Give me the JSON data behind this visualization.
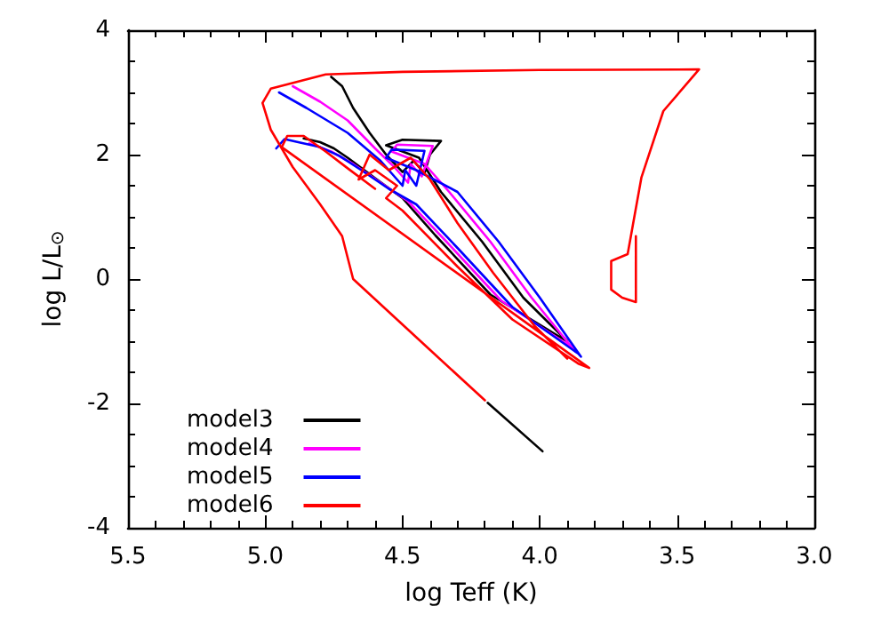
{
  "chart_data": {
    "type": "line",
    "xlabel": "log Teff (K)",
    "ylabel": "log L/L$_{⊙}$",
    "xlim": [
      5.5,
      3.0
    ],
    "xticks": [
      5.5,
      {
        "value": 5,
        "label": "5.0"
      },
      4.5,
      {
        "value": 4,
        "label": "4.0"
      },
      3.5,
      {
        "value": 3,
        "label": "3.0"
      }
    ],
    "ylim": [
      -4,
      4
    ],
    "yticks": [
      -4,
      -2,
      0,
      2,
      4
    ],
    "grid": false,
    "legend": "bottom left",
    "marker": "none",
    "line_style": "solid",
    "series": [
      {
        "name": "model3",
        "color": "#000000",
        "x": [
          4.76,
          4.72,
          4.68,
          4.62,
          4.56,
          4.5,
          4.46,
          4.42,
          4.4,
          4.36,
          4.5,
          4.56,
          4.44,
          4.36,
          4.21,
          4.06,
          3.9,
          3.92,
          4.18,
          4.38,
          4.5,
          4.6,
          4.7,
          4.75,
          4.8,
          4.86
        ],
        "values": [
          3.25,
          3.1,
          2.75,
          2.35,
          2.0,
          1.72,
          1.9,
          1.7,
          2.0,
          2.22,
          2.24,
          2.15,
          1.95,
          1.4,
          0.6,
          -0.3,
          -1.0,
          -0.95,
          -0.25,
          0.7,
          1.3,
          1.62,
          1.95,
          2.1,
          2.2,
          2.26
        ]
      },
      {
        "color": "#000000",
        "x": [
          4.19,
          3.99
        ],
        "values": [
          -1.99,
          -2.77
        ]
      },
      {
        "name": "model4",
        "color": "#ff00ff",
        "x": [
          4.9,
          4.8,
          4.7,
          4.6,
          4.53,
          4.48,
          4.47,
          4.43,
          4.39,
          4.52,
          4.54,
          4.42,
          4.33,
          4.18,
          4.03,
          3.87,
          3.89,
          4.14,
          4.34,
          4.48,
          4.58,
          4.68,
          4.76,
          4.84
        ],
        "values": [
          3.1,
          2.85,
          2.55,
          2.1,
          1.8,
          1.55,
          1.85,
          1.65,
          2.14,
          2.16,
          2.05,
          1.85,
          1.4,
          0.6,
          -0.3,
          -1.17,
          -1.08,
          -0.35,
          0.6,
          1.25,
          1.55,
          1.85,
          2.05,
          2.18
        ]
      },
      {
        "name": "model5",
        "color": "#0000ff",
        "x": [
          4.95,
          4.85,
          4.7,
          4.58,
          4.5,
          4.49,
          4.45,
          4.42,
          4.54,
          4.56,
          4.45,
          4.3,
          4.15,
          4.0,
          3.85,
          3.86,
          4.1,
          4.3,
          4.45,
          4.55,
          4.65,
          4.73,
          4.8,
          4.88,
          4.93,
          4.96
        ],
        "values": [
          3.0,
          2.75,
          2.35,
          1.9,
          1.5,
          1.75,
          1.5,
          2.06,
          2.08,
          1.95,
          1.75,
          1.4,
          0.6,
          -0.3,
          -1.25,
          -1.2,
          -0.45,
          0.5,
          1.2,
          1.45,
          1.75,
          1.98,
          2.12,
          2.2,
          2.25,
          2.1
        ]
      },
      {
        "name": "model6",
        "color": "#ff0000",
        "x": [
          3.65,
          3.65,
          3.7,
          3.74,
          3.74,
          3.68,
          3.63,
          3.55,
          3.42,
          4.0,
          4.5,
          4.78,
          4.98,
          5.01,
          4.98,
          4.9,
          4.8,
          4.72,
          4.68,
          4.4,
          4.2
        ],
        "values": [
          0.69,
          -0.37,
          -0.3,
          -0.17,
          0.29,
          0.4,
          1.63,
          2.7,
          3.37,
          3.36,
          3.33,
          3.29,
          3.06,
          2.83,
          2.4,
          1.8,
          1.2,
          0.69,
          0.0,
          -1.14,
          -1.95
        ]
      },
      {
        "color": "#ff0000",
        "x": [
          4.6,
          4.7,
          4.78,
          4.86,
          4.92,
          4.94,
          3.82,
          3.86,
          4.1,
          4.3,
          4.5,
          4.56,
          4.52,
          4.6,
          4.66,
          4.62,
          4.55,
          4.47,
          4.4,
          4.3,
          4.17,
          4.02,
          3.9
        ],
        "values": [
          1.45,
          1.78,
          2.05,
          2.3,
          2.3,
          2.12,
          -1.43,
          -1.36,
          -0.65,
          0.2,
          1.1,
          1.3,
          1.5,
          1.75,
          1.6,
          2.0,
          1.75,
          1.95,
          1.6,
          0.9,
          0.1,
          -0.75,
          -1.28
        ]
      }
    ]
  }
}
